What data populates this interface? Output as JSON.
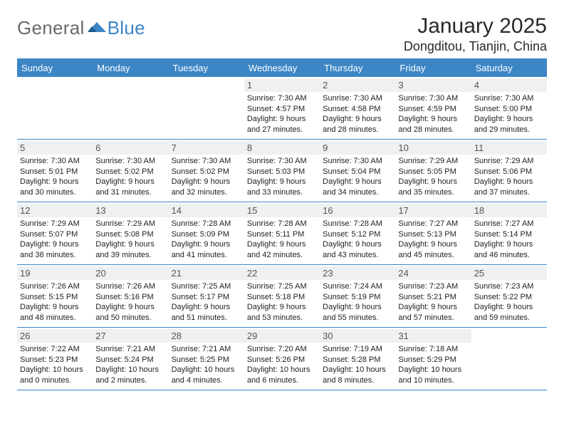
{
  "brand": {
    "general": "General",
    "blue": "Blue"
  },
  "title": "January 2025",
  "location": "Dongditou, Tianjin, China",
  "colors": {
    "accent": "#3d86c6",
    "dow_bg": "#3d86c6",
    "dow_fg": "#ffffff",
    "daynum_bg": "#eef0f1",
    "page_bg": "#ffffff",
    "text": "#2b2b2b"
  },
  "daysOfWeek": [
    "Sunday",
    "Monday",
    "Tuesday",
    "Wednesday",
    "Thursday",
    "Friday",
    "Saturday"
  ],
  "weeks": [
    [
      {
        "n": "",
        "l": []
      },
      {
        "n": "",
        "l": []
      },
      {
        "n": "",
        "l": []
      },
      {
        "n": "1",
        "l": [
          "Sunrise: 7:30 AM",
          "Sunset: 4:57 PM",
          "Daylight: 9 hours",
          "and 27 minutes."
        ]
      },
      {
        "n": "2",
        "l": [
          "Sunrise: 7:30 AM",
          "Sunset: 4:58 PM",
          "Daylight: 9 hours",
          "and 28 minutes."
        ]
      },
      {
        "n": "3",
        "l": [
          "Sunrise: 7:30 AM",
          "Sunset: 4:59 PM",
          "Daylight: 9 hours",
          "and 28 minutes."
        ]
      },
      {
        "n": "4",
        "l": [
          "Sunrise: 7:30 AM",
          "Sunset: 5:00 PM",
          "Daylight: 9 hours",
          "and 29 minutes."
        ]
      }
    ],
    [
      {
        "n": "5",
        "l": [
          "Sunrise: 7:30 AM",
          "Sunset: 5:01 PM",
          "Daylight: 9 hours",
          "and 30 minutes."
        ]
      },
      {
        "n": "6",
        "l": [
          "Sunrise: 7:30 AM",
          "Sunset: 5:02 PM",
          "Daylight: 9 hours",
          "and 31 minutes."
        ]
      },
      {
        "n": "7",
        "l": [
          "Sunrise: 7:30 AM",
          "Sunset: 5:02 PM",
          "Daylight: 9 hours",
          "and 32 minutes."
        ]
      },
      {
        "n": "8",
        "l": [
          "Sunrise: 7:30 AM",
          "Sunset: 5:03 PM",
          "Daylight: 9 hours",
          "and 33 minutes."
        ]
      },
      {
        "n": "9",
        "l": [
          "Sunrise: 7:30 AM",
          "Sunset: 5:04 PM",
          "Daylight: 9 hours",
          "and 34 minutes."
        ]
      },
      {
        "n": "10",
        "l": [
          "Sunrise: 7:29 AM",
          "Sunset: 5:05 PM",
          "Daylight: 9 hours",
          "and 35 minutes."
        ]
      },
      {
        "n": "11",
        "l": [
          "Sunrise: 7:29 AM",
          "Sunset: 5:06 PM",
          "Daylight: 9 hours",
          "and 37 minutes."
        ]
      }
    ],
    [
      {
        "n": "12",
        "l": [
          "Sunrise: 7:29 AM",
          "Sunset: 5:07 PM",
          "Daylight: 9 hours",
          "and 38 minutes."
        ]
      },
      {
        "n": "13",
        "l": [
          "Sunrise: 7:29 AM",
          "Sunset: 5:08 PM",
          "Daylight: 9 hours",
          "and 39 minutes."
        ]
      },
      {
        "n": "14",
        "l": [
          "Sunrise: 7:28 AM",
          "Sunset: 5:09 PM",
          "Daylight: 9 hours",
          "and 41 minutes."
        ]
      },
      {
        "n": "15",
        "l": [
          "Sunrise: 7:28 AM",
          "Sunset: 5:11 PM",
          "Daylight: 9 hours",
          "and 42 minutes."
        ]
      },
      {
        "n": "16",
        "l": [
          "Sunrise: 7:28 AM",
          "Sunset: 5:12 PM",
          "Daylight: 9 hours",
          "and 43 minutes."
        ]
      },
      {
        "n": "17",
        "l": [
          "Sunrise: 7:27 AM",
          "Sunset: 5:13 PM",
          "Daylight: 9 hours",
          "and 45 minutes."
        ]
      },
      {
        "n": "18",
        "l": [
          "Sunrise: 7:27 AM",
          "Sunset: 5:14 PM",
          "Daylight: 9 hours",
          "and 46 minutes."
        ]
      }
    ],
    [
      {
        "n": "19",
        "l": [
          "Sunrise: 7:26 AM",
          "Sunset: 5:15 PM",
          "Daylight: 9 hours",
          "and 48 minutes."
        ]
      },
      {
        "n": "20",
        "l": [
          "Sunrise: 7:26 AM",
          "Sunset: 5:16 PM",
          "Daylight: 9 hours",
          "and 50 minutes."
        ]
      },
      {
        "n": "21",
        "l": [
          "Sunrise: 7:25 AM",
          "Sunset: 5:17 PM",
          "Daylight: 9 hours",
          "and 51 minutes."
        ]
      },
      {
        "n": "22",
        "l": [
          "Sunrise: 7:25 AM",
          "Sunset: 5:18 PM",
          "Daylight: 9 hours",
          "and 53 minutes."
        ]
      },
      {
        "n": "23",
        "l": [
          "Sunrise: 7:24 AM",
          "Sunset: 5:19 PM",
          "Daylight: 9 hours",
          "and 55 minutes."
        ]
      },
      {
        "n": "24",
        "l": [
          "Sunrise: 7:23 AM",
          "Sunset: 5:21 PM",
          "Daylight: 9 hours",
          "and 57 minutes."
        ]
      },
      {
        "n": "25",
        "l": [
          "Sunrise: 7:23 AM",
          "Sunset: 5:22 PM",
          "Daylight: 9 hours",
          "and 59 minutes."
        ]
      }
    ],
    [
      {
        "n": "26",
        "l": [
          "Sunrise: 7:22 AM",
          "Sunset: 5:23 PM",
          "Daylight: 10 hours",
          "and 0 minutes."
        ]
      },
      {
        "n": "27",
        "l": [
          "Sunrise: 7:21 AM",
          "Sunset: 5:24 PM",
          "Daylight: 10 hours",
          "and 2 minutes."
        ]
      },
      {
        "n": "28",
        "l": [
          "Sunrise: 7:21 AM",
          "Sunset: 5:25 PM",
          "Daylight: 10 hours",
          "and 4 minutes."
        ]
      },
      {
        "n": "29",
        "l": [
          "Sunrise: 7:20 AM",
          "Sunset: 5:26 PM",
          "Daylight: 10 hours",
          "and 6 minutes."
        ]
      },
      {
        "n": "30",
        "l": [
          "Sunrise: 7:19 AM",
          "Sunset: 5:28 PM",
          "Daylight: 10 hours",
          "and 8 minutes."
        ]
      },
      {
        "n": "31",
        "l": [
          "Sunrise: 7:18 AM",
          "Sunset: 5:29 PM",
          "Daylight: 10 hours",
          "and 10 minutes."
        ]
      },
      {
        "n": "",
        "l": []
      }
    ]
  ]
}
